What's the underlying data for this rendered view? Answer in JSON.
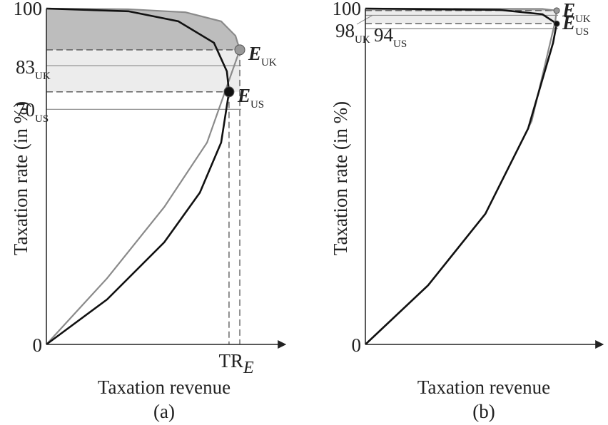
{
  "chart_data": [
    {
      "type": "line",
      "caption": "(a)",
      "ylabel": "Taxation rate (in %)",
      "xlabel": "Taxation revenue",
      "ylim": [
        0,
        100
      ],
      "xlim": [
        0,
        100
      ],
      "yticks": [
        0,
        100
      ],
      "x_marker": {
        "label": "TR",
        "sub": "E"
      },
      "ref_lines": [
        {
          "value": 83,
          "label": "83",
          "sub": "UK"
        },
        {
          "value": 70,
          "label": "70",
          "sub": "US"
        }
      ],
      "series": [
        {
          "color": "#8a8a8a",
          "x": [
            0,
            25.4,
            49.3,
            67.2,
            80.9,
            79.1,
            73.1,
            58.2,
            34.3,
            0
          ],
          "values": [
            0,
            19.7,
            40.9,
            60.1,
            87.7,
            91.9,
            96.2,
            98.9,
            99.8,
            100
          ]
        },
        {
          "color": "#111111",
          "x": [
            0,
            25.4,
            49.3,
            64.2,
            73.1,
            76.4,
            75.5,
            70.1,
            55.2,
            34.3,
            0
          ],
          "values": [
            0,
            13.4,
            30.4,
            45.2,
            60.1,
            75.2,
            81.3,
            89.8,
            96.2,
            99.2,
            100
          ]
        }
      ],
      "points": [
        {
          "label": "E",
          "sub": "UK",
          "x": 80.9,
          "y": 87.7,
          "color": "#999999"
        },
        {
          "label": "E",
          "sub": "US",
          "x": 76.4,
          "y": 75.2,
          "color": "#111111"
        }
      ]
    },
    {
      "type": "line",
      "caption": "(b)",
      "ylabel": "Taxation rate (in %)",
      "xlabel": "Taxation revenue",
      "ylim": [
        0,
        100
      ],
      "xlim": [
        0,
        100
      ],
      "yticks": [
        0,
        100
      ],
      "ref_lines": [
        {
          "value": 98,
          "label": "98",
          "sub": "UK"
        },
        {
          "value": 94,
          "label": "94",
          "sub": "US"
        }
      ],
      "series": [
        {
          "color": "#8a8a8a",
          "x": [
            0,
            26.4,
            50.5,
            70.0,
            79.9,
            80.5,
            74.5,
            0
          ],
          "values": [
            0,
            17.6,
            38.9,
            66.5,
            96.2,
            99.4,
            99.9,
            100
          ]
        },
        {
          "color": "#111111",
          "x": [
            0,
            26.4,
            50.5,
            68.5,
            79.0,
            80.5,
            74.5,
            56.5,
            0
          ],
          "values": [
            0,
            17.6,
            38.9,
            64.3,
            89.8,
            95.5,
            98.3,
            99.6,
            100
          ]
        }
      ],
      "points": [
        {
          "label": "E",
          "sub": "UK",
          "x": 80.5,
          "y": 99.4,
          "color": "#999999"
        },
        {
          "label": "E",
          "sub": "US",
          "x": 80.5,
          "y": 95.5,
          "color": "#111111"
        }
      ]
    }
  ]
}
